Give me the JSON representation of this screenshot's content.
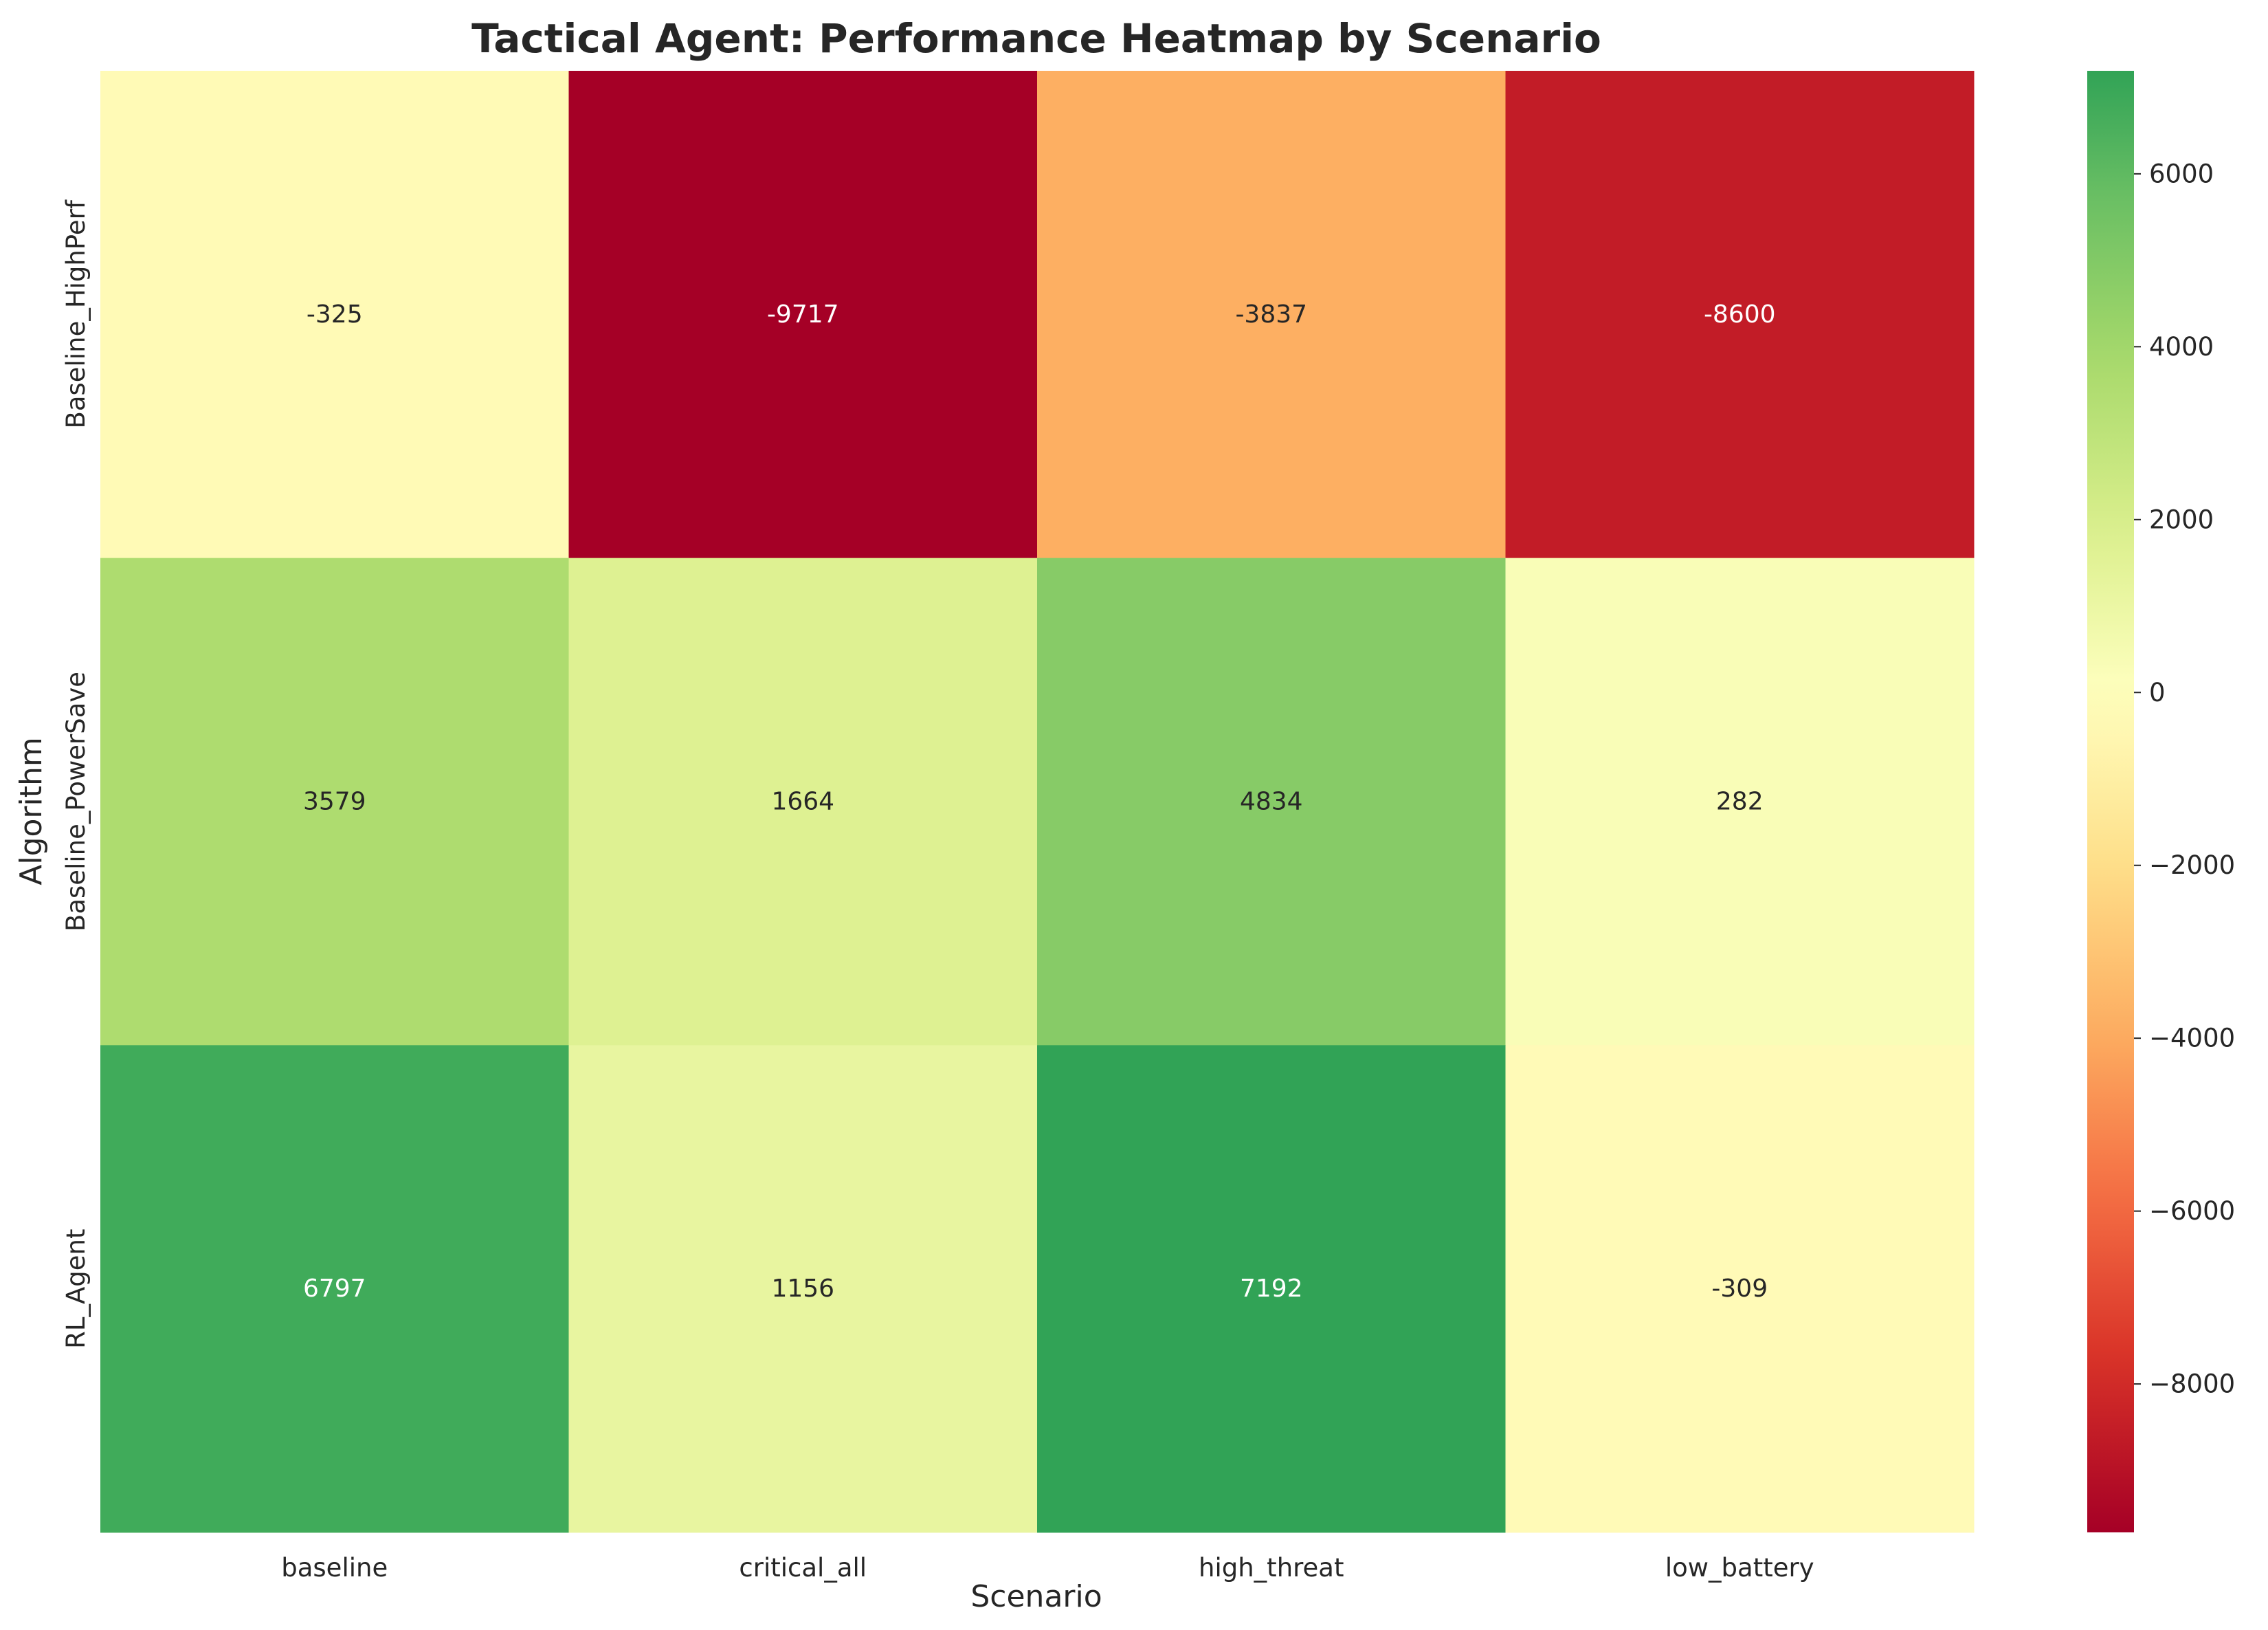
{
  "chart_data": {
    "type": "heatmap",
    "title": "Tactical Agent: Performance Heatmap by Scenario",
    "xlabel": "Scenario",
    "ylabel": "Algorithm",
    "x_categories": [
      "baseline",
      "critical_all",
      "high_threat",
      "low_battery"
    ],
    "y_categories": [
      "Baseline_HighPerf",
      "Baseline_PowerSave",
      "RL_Agent"
    ],
    "values": [
      [
        -325,
        -9717,
        -3837,
        -8600
      ],
      [
        3579,
        1664,
        4834,
        282
      ],
      [
        6797,
        1156,
        7192,
        -309
      ]
    ],
    "colormap": "RdYlGn",
    "center": 0,
    "vmin": -9717,
    "vmax": 7192,
    "colorbar_ticks": [
      6000,
      4000,
      2000,
      0,
      -2000,
      -4000,
      -6000,
      -8000
    ],
    "colorbar_tick_labels": [
      "6000",
      "4000",
      "2000",
      "0",
      "−2000",
      "−4000",
      "−6000",
      "−8000"
    ],
    "annotated": true,
    "grid": false,
    "colorbar_position": "right"
  }
}
